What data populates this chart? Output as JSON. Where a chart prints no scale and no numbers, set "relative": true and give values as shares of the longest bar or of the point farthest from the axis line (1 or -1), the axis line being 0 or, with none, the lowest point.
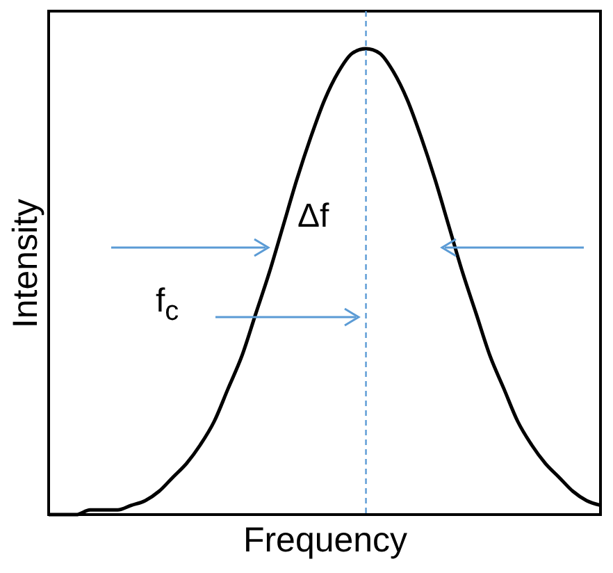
{
  "chart_data": {
    "type": "line",
    "relative": true,
    "xlabel": "Frequency",
    "ylabel": "Intensity",
    "tick_labels": false,
    "grid": false,
    "marker": "none",
    "line_style": "solid",
    "categories": [
      null,
      null,
      null,
      null,
      null,
      null,
      null,
      null,
      null,
      null,
      null,
      null,
      null,
      null,
      null,
      null,
      null,
      null,
      null,
      null,
      null,
      null,
      null,
      null,
      null,
      null,
      null,
      null,
      null,
      null,
      null,
      null,
      null,
      null,
      null,
      null,
      null,
      null,
      null,
      null,
      null
    ],
    "series": [
      {
        "color": "#000000",
        "values": [
          0,
          0,
          0,
          0.01,
          0.01,
          0.01,
          0.02,
          0.03,
          0.05,
          0.08,
          0.11,
          0.15,
          0.2,
          0.27,
          0.34,
          0.43,
          0.52,
          0.62,
          0.72,
          0.81,
          0.89,
          0.95,
          0.99,
          1,
          0.99,
          0.95,
          0.89,
          0.81,
          0.72,
          0.62,
          0.52,
          0.43,
          0.34,
          0.27,
          0.2,
          0.15,
          0.11,
          0.08,
          0.05,
          0.03,
          0.02
        ]
      }
    ],
    "annotations": [
      "Δf",
      "f$_{c}$"
    ]
  }
}
